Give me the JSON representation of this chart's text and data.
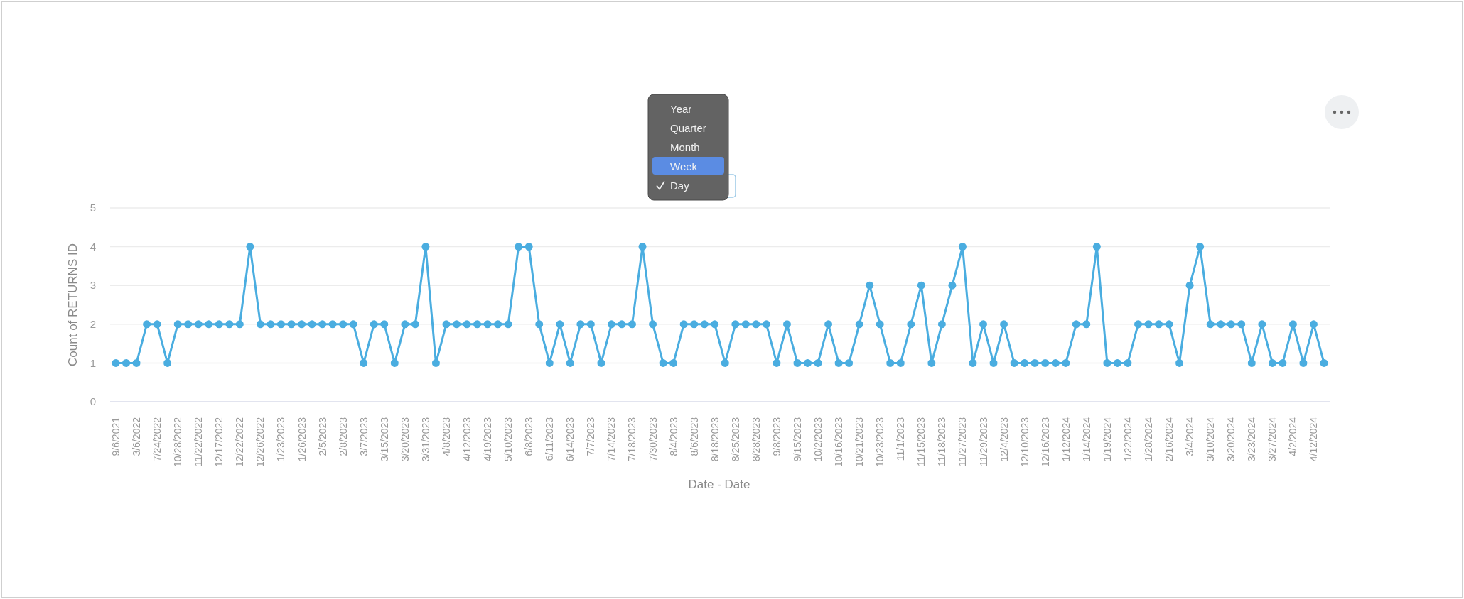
{
  "chart_data": {
    "type": "line",
    "xlabel": "Date - Date",
    "ylabel": "Count of RETURNS ID",
    "categories": [
      "9/6/2021",
      null,
      "3/6/2022",
      null,
      "7/24/2022",
      null,
      "10/28/2022",
      null,
      "11/22/2022",
      null,
      "12/17/2022",
      null,
      "12/22/2022",
      null,
      "12/26/2022",
      null,
      "1/23/2023",
      null,
      "1/26/2023",
      null,
      "2/5/2023",
      null,
      "2/8/2023",
      null,
      "3/7/2023",
      null,
      "3/15/2023",
      null,
      "3/20/2023",
      null,
      "3/31/2023",
      null,
      "4/8/2023",
      null,
      "4/12/2023",
      null,
      "4/19/2023",
      null,
      "5/10/2023",
      null,
      "6/8/2023",
      null,
      "6/11/2023",
      null,
      "6/14/2023",
      null,
      "7/7/2023",
      null,
      "7/14/2023",
      null,
      "7/18/2023",
      null,
      "7/30/2023",
      null,
      "8/4/2023",
      null,
      "8/6/2023",
      null,
      "8/18/2023",
      null,
      "8/25/2023",
      null,
      "8/28/2023",
      null,
      "9/8/2023",
      null,
      "9/15/2023",
      null,
      "10/2/2023",
      null,
      "10/16/2023",
      null,
      "10/21/2023",
      null,
      "10/23/2023",
      null,
      "11/1/2023",
      null,
      "11/15/2023",
      null,
      "11/18/2023",
      null,
      "11/27/2023",
      null,
      "11/29/2023",
      null,
      "12/4/2023",
      null,
      "12/10/2023",
      null,
      "12/16/2023",
      null,
      "1/12/2024",
      null,
      "1/14/2024",
      null,
      "1/19/2024",
      null,
      "1/22/2024",
      null,
      "1/28/2024",
      null,
      "2/16/2024",
      null,
      "3/4/2024",
      null,
      "3/10/2024",
      null,
      "3/20/2024",
      null,
      "3/23/2024",
      null,
      "3/27/2024",
      null,
      "4/2/2024",
      null,
      "4/12/2024",
      null
    ],
    "series": [
      {
        "color": "#4aade0",
        "values": [
          1,
          1,
          1,
          2,
          2,
          1,
          2,
          2,
          2,
          2,
          2,
          2,
          2,
          4,
          2,
          2,
          2,
          2,
          2,
          2,
          2,
          2,
          2,
          2,
          1,
          2,
          2,
          1,
          2,
          2,
          4,
          1,
          2,
          2,
          2,
          2,
          2,
          2,
          2,
          4,
          4,
          2,
          1,
          2,
          1,
          2,
          2,
          1,
          2,
          2,
          2,
          4,
          2,
          1,
          1,
          2,
          2,
          2,
          2,
          1,
          2,
          2,
          2,
          2,
          1,
          2,
          1,
          1,
          1,
          2,
          1,
          1,
          2,
          3,
          2,
          1,
          1,
          2,
          3,
          1,
          2,
          3,
          4,
          1,
          2,
          1,
          2,
          1,
          1,
          1,
          1,
          1,
          1,
          2,
          2,
          4,
          1,
          1,
          1,
          2,
          2,
          2,
          2,
          1,
          3,
          4,
          2,
          2,
          2,
          2,
          1,
          2,
          1,
          1,
          2,
          1,
          2,
          1
        ]
      }
    ],
    "ylim": [
      0,
      5
    ],
    "yticks": [
      0,
      1,
      2,
      3,
      4,
      5
    ],
    "grid": "y",
    "marker": "circle",
    "line_style": "solid",
    "annotations": [
      "Year",
      "Quarter",
      "Month",
      "Week",
      "Day"
    ]
  }
}
